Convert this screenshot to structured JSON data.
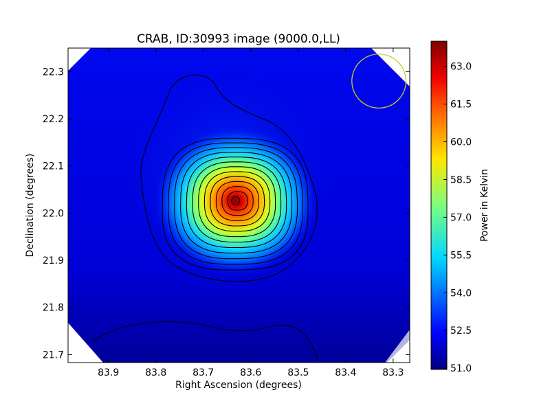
{
  "chart_data": {
    "type": "heatmap",
    "title": "CRAB, ID:30993 image (9000.0,LL)",
    "xlabel": "Right Ascension (degrees)",
    "ylabel": "Declination (degrees)",
    "xlim": [
      83.985,
      83.265
    ],
    "ylim": [
      21.683,
      22.35
    ],
    "x_ticks": [
      "83.9",
      "83.8",
      "83.7",
      "83.6",
      "83.5",
      "83.4",
      "83.3"
    ],
    "x_tick_values": [
      83.9,
      83.8,
      83.7,
      83.6,
      83.5,
      83.4,
      83.3
    ],
    "y_ticks": [
      "21.7",
      "21.8",
      "21.9",
      "22.0",
      "22.1",
      "22.2",
      "22.3"
    ],
    "y_tick_values": [
      21.7,
      21.8,
      21.9,
      22.0,
      22.1,
      22.2,
      22.3
    ],
    "colorbar": {
      "label": "Power in Kelvin",
      "range": [
        50.95,
        64.0
      ],
      "ticks": [
        "51.0",
        "52.5",
        "54.0",
        "55.5",
        "57.0",
        "58.5",
        "60.0",
        "61.5",
        "63.0"
      ],
      "tick_values": [
        51.0,
        52.5,
        54.0,
        55.5,
        57.0,
        58.5,
        60.0,
        61.5,
        63.0
      ],
      "colormap": "jet"
    },
    "peak": {
      "ra": 83.632,
      "dec": 22.026,
      "value": 63.9
    },
    "background_value": 52.3,
    "beam_circle": {
      "ra": 83.33,
      "dec": 22.28,
      "radius_deg": 0.057,
      "color": "#c8c832"
    },
    "grid": false,
    "legend": "none"
  }
}
